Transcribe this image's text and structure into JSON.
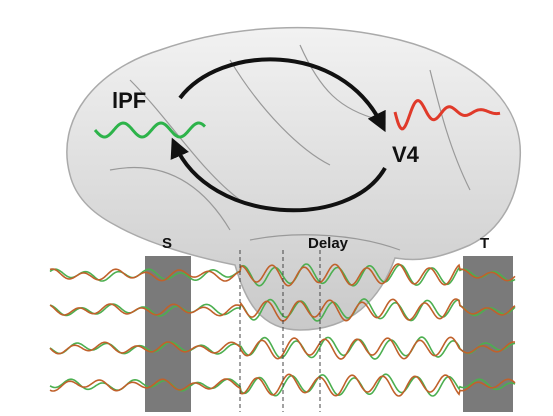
{
  "labels": {
    "region_a": "lPF",
    "region_b": "V4",
    "sample": "S",
    "delay": "Delay",
    "test": "T"
  }
}
